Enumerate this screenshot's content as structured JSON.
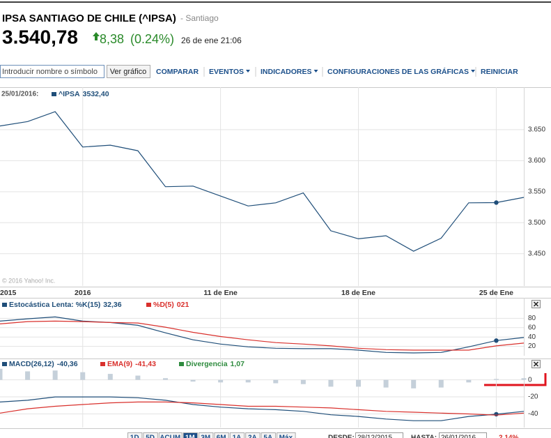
{
  "header": {
    "title": "IPSA SANTIAGO DE CHILE (^IPSA)",
    "exchange": "- Santiago",
    "price": "3.540,78",
    "change": "8,38",
    "change_pct": "(0.24%)",
    "time": "26 de ene 21:06"
  },
  "toolbar": {
    "search_placeholder": "Introducir nombre o símbolo",
    "button": "Ver gráfico",
    "menu": [
      "COMPARAR",
      "EVENTOS",
      "INDICADORES",
      "CONFIGURACIONES DE LAS GRÁFICAS",
      "REINICIAR"
    ]
  },
  "main_chart": {
    "type": "line",
    "legend_date": "25/01/2016:",
    "watermark": "© 2016 Yahoo! Inc.",
    "categories": [
      "2015",
      null,
      null,
      "2016",
      null,
      null,
      null,
      null,
      "11 de Ene",
      null,
      null,
      null,
      null,
      "18 de Ene",
      null,
      null,
      null,
      null,
      "25 de Ene",
      null
    ],
    "series": [
      {
        "name": "^IPSA",
        "legend_value": "3532,40",
        "color": "#1f4e79",
        "values": [
          3656,
          3663,
          3679,
          3622,
          3625,
          3616,
          3558,
          3559,
          3543,
          3527,
          3532,
          3548,
          3487,
          3474,
          3479,
          3454,
          3475,
          3532,
          3532.4,
          3540.78
        ]
      }
    ],
    "ylim": [
      3398,
      3696
    ],
    "yticks": [
      {
        "value": 3450,
        "label": "3.450"
      },
      {
        "value": 3500,
        "label": "3.500"
      },
      {
        "value": 3550,
        "label": "3.550"
      },
      {
        "value": 3600,
        "label": "3.600"
      },
      {
        "value": 3650,
        "label": "3.650"
      }
    ]
  },
  "stochastic": {
    "type": "line",
    "series": [
      {
        "name": "Estocástica Lenta: %K(15)",
        "legend_value": "32,36",
        "color": "#1f4e79",
        "values": [
          74,
          79,
          83,
          74,
          71,
          65,
          49,
          34,
          25,
          19,
          16,
          15,
          15,
          12,
          7,
          6,
          7,
          19,
          32.36,
          39
        ]
      },
      {
        "name": "%D(5)",
        "legend_value": "021",
        "color": "#d9302c",
        "values": [
          68,
          73,
          74,
          73,
          71,
          70,
          61,
          50,
          41,
          34,
          28,
          25,
          21,
          16,
          13,
          12,
          12,
          12,
          21,
          27
        ]
      }
    ],
    "ylim": [
      0,
      100
    ],
    "yticks": [
      20,
      40,
      60,
      80
    ]
  },
  "macd": {
    "type": "line",
    "series": [
      {
        "name": "MACD(26,12)",
        "legend_value": "-40,36",
        "color": "#1f4e79",
        "values": [
          -26,
          -24,
          -20,
          -20,
          -20,
          -21,
          -24,
          -29,
          -32,
          -34,
          -35,
          -37,
          -41,
          -43,
          -46,
          -48,
          -48,
          -43,
          -40.36,
          -37
        ]
      },
      {
        "name": "EMA(9)",
        "legend_value": "-41,43",
        "color": "#d9302c",
        "values": [
          -39,
          -34,
          -31,
          -29,
          -27,
          -26,
          -26,
          -27,
          -29,
          -31,
          -31,
          -32,
          -33,
          -35,
          -37,
          -38,
          -39,
          -40,
          -41.43,
          -39
        ]
      },
      {
        "name": "Divergencia",
        "legend_value": "1,07",
        "color": "#2e8b3e",
        "bar_color": "#c5d0da",
        "kind": "bar",
        "values": [
          13,
          10,
          11,
          9,
          7,
          5,
          2,
          -2,
          -3,
          -3,
          -4,
          -5,
          -8,
          -8,
          -9,
          -10,
          -9,
          -3,
          1.07,
          2
        ]
      }
    ],
    "ylim": [
      -56,
      12
    ],
    "yticks": [
      -40,
      -20,
      0
    ]
  },
  "range_bar": {
    "buttons": [
      "1D",
      "5D",
      "ACUM",
      "1M",
      "3M",
      "6M",
      "1A",
      "2A",
      "5A",
      "Máx"
    ],
    "from_label": "DESDE:",
    "from": "28/12/2015",
    "to_label": "HASTA:",
    "to": "26/01/2016",
    "change": "2,14%"
  }
}
